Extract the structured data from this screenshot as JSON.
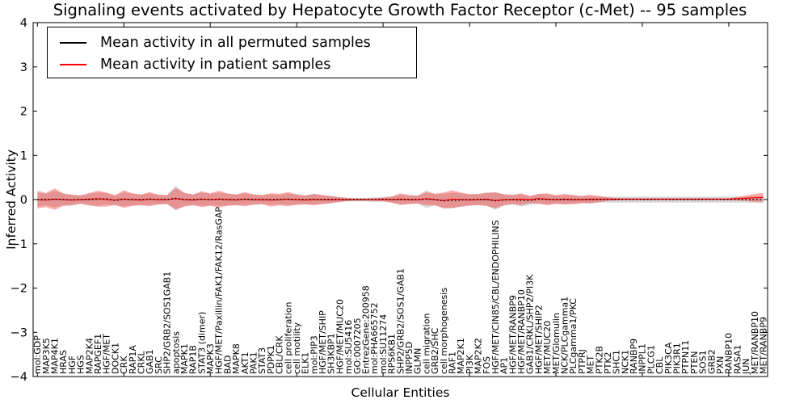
{
  "title": "Signaling events activated by Hepatocyte Growth Factor Receptor (c-Met) -- 95 samples",
  "legend": {
    "items": [
      {
        "label": "Mean activity in all permuted samples",
        "color": "#000000"
      },
      {
        "label": "Mean activity in patient samples",
        "color": "#ff0000"
      }
    ]
  },
  "chart_data": {
    "type": "line",
    "title": "Signaling events activated by Hepatocyte Growth Factor Receptor (c-Met) -- 95 samples",
    "xlabel": "Cellular Entities",
    "ylabel": "Inferred Activity",
    "ylim": [
      -4,
      4
    ],
    "yticks": [
      4,
      3,
      2,
      1,
      0,
      -1,
      -2,
      -3,
      -4
    ],
    "grid": false,
    "legend_position": "upper left",
    "categories": [
      "mol:GDP",
      "MAP3K5",
      "MAP4K1",
      "HRAS",
      "HGF",
      "HGS",
      "MAP2K4",
      "RAPGEF1",
      "HGF/MET",
      "DOCK1",
      "CRK",
      "RAP1A",
      "CRKL",
      "GAB1",
      "SRC",
      "SHP2/GRB2/SOS1GAB1",
      "apoptosis",
      "MAPK1",
      "RAP1B",
      "STAT3 (dimer)",
      "MAPK3",
      "HGF/MET/Paxillin/FAK1/FAK12/RasGAP",
      "BAD",
      "MAPK8",
      "AKT1",
      "PAK1",
      "STAT3",
      "PDPK1",
      "CBL/CRK",
      "cell proliferation",
      "cell motility",
      "ELK1",
      "mol:PIP3",
      "HGF/MET/SHIP",
      "SH3KBP1",
      "HGF/MET/MUC20",
      "mol:SU5416",
      "GO:0007205",
      "EntrezGene:200958",
      "mol:PHA665752",
      "mol:SU11274",
      "RPS6KB1",
      "SHP2/GRB2/SOS1/GAB1",
      "INPP5D",
      "GLMN",
      "cell migration",
      "GRB2/SHC",
      "cell morphogenesis",
      "RAF1",
      "MAP2K1",
      "PI3K",
      "MAP2K2",
      "FOS",
      "HGF/MET/CIN85/CBL/ENDOPHILINS",
      "AP1",
      "HGF/MET/RANBP9",
      "HGF/MET/RANBP10",
      "GAB1/CRKL/SHP2/PI3K",
      "HGF/MET/SHIP2",
      "MET/MUC20",
      "MET/Glomulin",
      "NCK/PLCgamma1",
      "PLCgamma1/PKC",
      "PTPRJ",
      "MET",
      "PTK2B",
      "PTK2",
      "SHC1",
      "NCK1",
      "RANBP9",
      "INPPL1",
      "PLCG1",
      "CBL",
      "PIK3CA",
      "PIK3R1",
      "PTPN11",
      "PTEN",
      "SOS1",
      "GRB2",
      "PXN",
      "RANBP10",
      "RASA1",
      "JUN",
      "MET/RANBP10",
      "MET/RANBP9"
    ],
    "series": [
      {
        "name": "Mean activity in all permuted samples",
        "color": "#000000",
        "style": "dotted",
        "band_color": "rgba(128,128,128,0.30)",
        "values": [
          0.0,
          0.0,
          0.01,
          0.0,
          -0.01,
          0.0,
          0.0,
          0.01,
          0.02,
          -0.02,
          0.01,
          0.0,
          0.0,
          0.01,
          0.0,
          0.0,
          0.03,
          0.0,
          0.0,
          0.01,
          0.0,
          0.01,
          0.0,
          0.0,
          0.01,
          0.0,
          0.0,
          0.0,
          0.0,
          0.01,
          0.0,
          0.0,
          0.01,
          0.0,
          0.0,
          0.0,
          0.0,
          0.0,
          0.0,
          0.0,
          0.01,
          0.0,
          0.0,
          0.0,
          0.0,
          0.01,
          0.0,
          -0.03,
          -0.02,
          -0.01,
          0.0,
          0.0,
          0.0,
          -0.03,
          -0.01,
          0.0,
          -0.02,
          -0.02,
          0.01,
          0.0,
          0.0,
          0.0,
          0.0,
          0.0,
          0.0,
          0.0,
          0.0,
          0.0,
          0.0,
          0.0,
          0.0,
          0.0,
          0.0,
          0.0,
          0.0,
          0.0,
          0.0,
          0.0,
          0.0,
          0.0,
          0.0,
          0.0,
          0.0,
          0.0,
          0.0
        ],
        "band_halfwidth": [
          0.16,
          0.13,
          0.19,
          0.13,
          0.12,
          0.1,
          0.13,
          0.15,
          0.13,
          0.11,
          0.16,
          0.13,
          0.12,
          0.13,
          0.11,
          0.1,
          0.28,
          0.14,
          0.12,
          0.15,
          0.13,
          0.15,
          0.13,
          0.12,
          0.13,
          0.11,
          0.1,
          0.12,
          0.11,
          0.13,
          0.11,
          0.1,
          0.12,
          0.1,
          0.08,
          0.06,
          0.04,
          0.04,
          0.04,
          0.05,
          0.05,
          0.07,
          0.11,
          0.1,
          0.09,
          0.2,
          0.13,
          0.16,
          0.18,
          0.15,
          0.12,
          0.13,
          0.14,
          0.2,
          0.13,
          0.11,
          0.14,
          0.1,
          0.11,
          0.12,
          0.09,
          0.1,
          0.1,
          0.08,
          0.08,
          0.07,
          0.07,
          0.07,
          0.07,
          0.07,
          0.07,
          0.07,
          0.07,
          0.07,
          0.07,
          0.07,
          0.07,
          0.07,
          0.07,
          0.07,
          0.07,
          0.07,
          0.07,
          0.08,
          0.08
        ]
      },
      {
        "name": "Mean activity in patient samples",
        "color": "#ff0000",
        "style": "solid",
        "band_color": "rgba(255,0,0,0.32)",
        "values": [
          0.0,
          -0.01,
          0.01,
          0.0,
          -0.01,
          0.0,
          0.01,
          0.02,
          0.0,
          -0.01,
          0.01,
          0.0,
          -0.01,
          0.01,
          0.0,
          0.0,
          0.02,
          0.0,
          -0.01,
          0.01,
          0.0,
          0.01,
          0.0,
          -0.01,
          0.01,
          0.0,
          0.0,
          -0.01,
          0.0,
          0.01,
          0.0,
          -0.01,
          0.0,
          0.0,
          0.0,
          0.0,
          0.0,
          0.0,
          0.0,
          0.0,
          0.0,
          0.0,
          0.01,
          0.0,
          0.0,
          0.02,
          0.0,
          -0.02,
          0.01,
          0.0,
          -0.01,
          0.0,
          0.01,
          -0.02,
          0.0,
          0.0,
          0.01,
          0.0,
          0.02,
          0.01,
          0.0,
          0.01,
          0.0,
          0.0,
          0.01,
          0.01,
          0.01,
          0.01,
          0.01,
          0.01,
          0.01,
          0.01,
          0.01,
          0.01,
          0.01,
          0.01,
          0.01,
          0.01,
          0.01,
          0.01,
          0.01,
          0.02,
          0.03,
          0.04,
          0.05
        ],
        "band_halfwidth": [
          0.2,
          0.16,
          0.24,
          0.14,
          0.12,
          0.09,
          0.14,
          0.18,
          0.16,
          0.11,
          0.2,
          0.14,
          0.12,
          0.16,
          0.11,
          0.1,
          0.24,
          0.16,
          0.12,
          0.18,
          0.14,
          0.19,
          0.14,
          0.12,
          0.16,
          0.12,
          0.1,
          0.15,
          0.13,
          0.16,
          0.12,
          0.1,
          0.13,
          0.1,
          0.08,
          0.05,
          0.03,
          0.025,
          0.025,
          0.03,
          0.04,
          0.07,
          0.13,
          0.1,
          0.09,
          0.15,
          0.13,
          0.18,
          0.2,
          0.16,
          0.13,
          0.12,
          0.15,
          0.18,
          0.12,
          0.1,
          0.13,
          0.08,
          0.11,
          0.13,
          0.1,
          0.12,
          0.1,
          0.08,
          0.1,
          0.07,
          0.04,
          0.025,
          0.02,
          0.02,
          0.02,
          0.02,
          0.02,
          0.02,
          0.02,
          0.02,
          0.02,
          0.02,
          0.02,
          0.02,
          0.02,
          0.04,
          0.06,
          0.09,
          0.1
        ]
      }
    ]
  }
}
